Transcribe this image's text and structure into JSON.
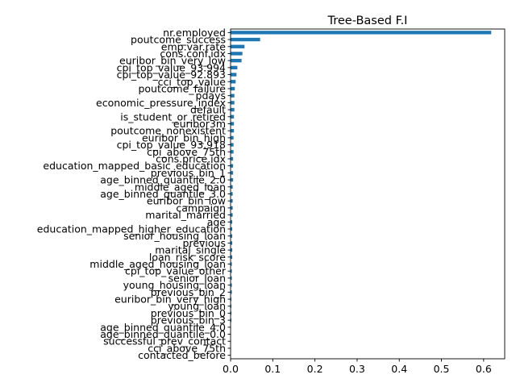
{
  "chart_data": {
    "type": "bar",
    "orientation": "horizontal",
    "title": "Tree-Based F.I",
    "xlabel": "",
    "ylabel": "",
    "xlim": [
      0,
      0.65
    ],
    "xticks": [
      "0.0",
      "0.1",
      "0.2",
      "0.3",
      "0.4",
      "0.5",
      "0.6"
    ],
    "bar_color": "#1f77b4",
    "grid": false,
    "legend": "none",
    "categories": [
      "nr.employed",
      "poutcome_success",
      "emp.var.rate",
      "cons.conf.idx",
      "euribor_bin_very_low",
      "cpi_top_value_93.994",
      "cpi_top_value_92.893",
      "cci_top_value",
      "poutcome_failure",
      "pdays",
      "economic_pressure_index",
      "default",
      "is_student_or_retired",
      "euribor3m",
      "poutcome_nonexistent",
      "euribor_bin_high",
      "cpi_top_value_93.918",
      "cpi_above_75th",
      "cons.price.idx",
      "education_mapped_basic_education",
      "previous_bin_1",
      "age_binned_quantile_2.0",
      "middle_aged_loan",
      "age_binned_quantile_3.0",
      "euribor_bin_low",
      "campaign",
      "marital_married",
      "age",
      "education_mapped_higher_education",
      "senior_housing_loan",
      "previous",
      "marital_single",
      "loan_risk_score",
      "middle_aged_housing_loan",
      "cpi_top_value_other",
      "senior_loan",
      "young_housing_loan",
      "previous_bin_2",
      "euribor_bin_very_high",
      "young_loan",
      "previous_bin_0",
      "previous_bin_3",
      "age_binned_quantile_4.0",
      "age_binned_quantile_0.0",
      "successful_prev_contact",
      "cci_above_75th",
      "contacted_before"
    ],
    "values": [
      0.618,
      0.07,
      0.033,
      0.028,
      0.026,
      0.016,
      0.014,
      0.012,
      0.01,
      0.009,
      0.009,
      0.009,
      0.008,
      0.008,
      0.008,
      0.007,
      0.007,
      0.007,
      0.006,
      0.006,
      0.006,
      0.006,
      0.005,
      0.005,
      0.005,
      0.005,
      0.005,
      0.004,
      0.004,
      0.004,
      0.004,
      0.004,
      0.004,
      0.003,
      0.003,
      0.003,
      0.003,
      0.003,
      0.002,
      0.002,
      0.002,
      0.002,
      0.001,
      0.001,
      0.001,
      0.001,
      0.0
    ]
  }
}
